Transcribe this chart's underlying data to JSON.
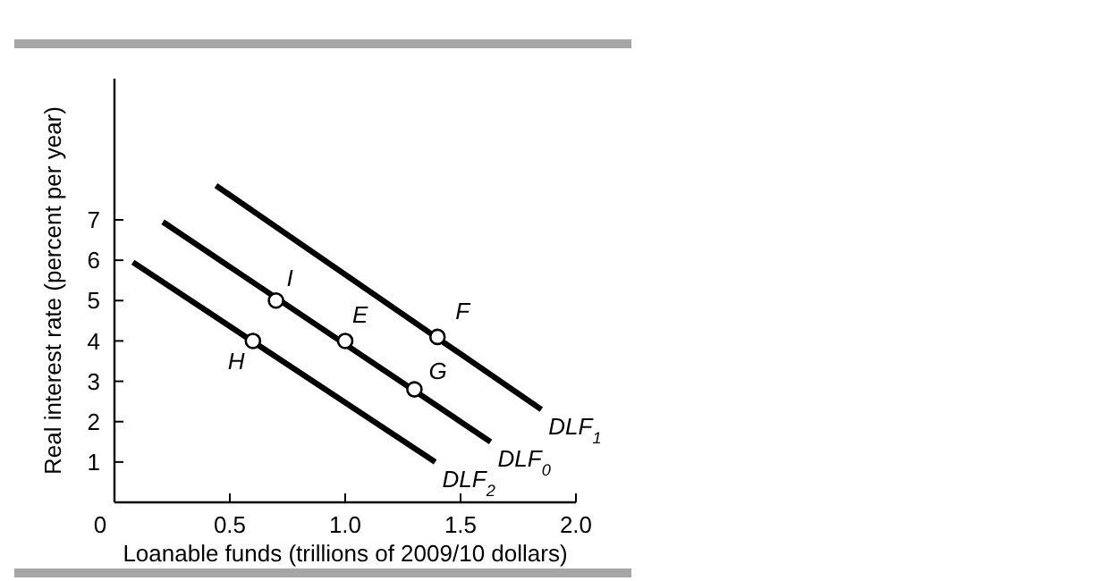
{
  "chart_data": {
    "type": "line",
    "xlabel": "Loanable funds (trillions of 2009/10 dollars)",
    "ylabel": "Real interest rate (percent per year)",
    "xlim": [
      0,
      2
    ],
    "ylim": [
      0,
      10.5
    ],
    "xticks": [
      {
        "value": 0,
        "label": "0"
      },
      0.5,
      {
        "value": 1,
        "label": "1.0"
      },
      1.5,
      {
        "value": 2,
        "label": "2.0"
      }
    ],
    "yticks": [
      1,
      2,
      3,
      4,
      5,
      6,
      7
    ],
    "line_style": "solid",
    "marker": "none",
    "series": [
      {
        "name": "DLF$_{1}$",
        "color": "#000000",
        "x": [
          0.44,
          1.85
        ],
        "values": [
          7.85,
          2.3
        ]
      },
      {
        "name": "DLF$_{0}$",
        "color": "#000000",
        "x": [
          0.21,
          1.63
        ],
        "values": [
          6.95,
          1.5
        ]
      },
      {
        "name": "DLF$_{2}$",
        "color": "#000000",
        "x": [
          0.08,
          1.39
        ],
        "values": [
          5.95,
          1.0
        ]
      },
      {
        "type": "scatter",
        "marker": "circle",
        "color": "#000000",
        "x": [
          0.7,
          1.0,
          1.3,
          1.4,
          0.6
        ],
        "values": [
          5,
          4,
          2.8,
          4.1,
          4
        ]
      }
    ],
    "annotations": [
      {
        "text": "I",
        "x": 0.7,
        "y": 5
      },
      {
        "text": "E",
        "x": 1.0,
        "y": 4
      },
      {
        "text": "G",
        "x": 1.3,
        "y": 2.8
      },
      {
        "text": "F",
        "x": 1.4,
        "y": 4.1
      },
      {
        "text": "H",
        "x": 0.6,
        "y": 4
      }
    ]
  }
}
